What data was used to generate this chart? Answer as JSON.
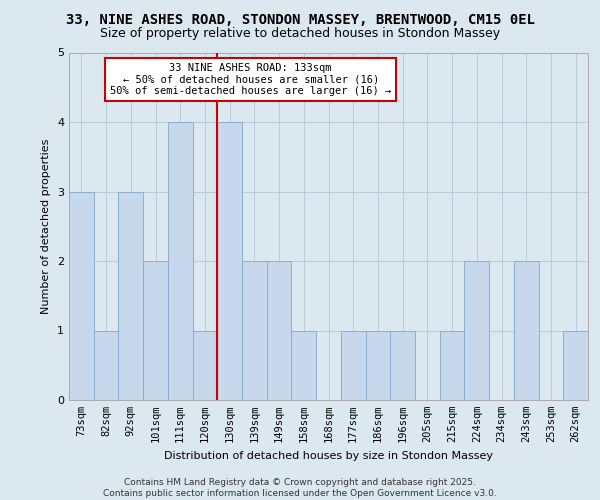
{
  "title1": "33, NINE ASHES ROAD, STONDON MASSEY, BRENTWOOD, CM15 0EL",
  "title2": "Size of property relative to detached houses in Stondon Massey",
  "xlabel": "Distribution of detached houses by size in Stondon Massey",
  "ylabel": "Number of detached properties",
  "categories": [
    "73sqm",
    "82sqm",
    "92sqm",
    "101sqm",
    "111sqm",
    "120sqm",
    "130sqm",
    "139sqm",
    "149sqm",
    "158sqm",
    "168sqm",
    "177sqm",
    "186sqm",
    "196sqm",
    "205sqm",
    "215sqm",
    "224sqm",
    "234sqm",
    "243sqm",
    "253sqm",
    "262sqm"
  ],
  "values": [
    3,
    1,
    3,
    2,
    4,
    1,
    4,
    2,
    2,
    1,
    0,
    1,
    1,
    1,
    0,
    1,
    2,
    0,
    2,
    0,
    1
  ],
  "bar_color": "#c8d8ec",
  "bar_edge_color": "#8bafd0",
  "vline_color": "#cc0000",
  "vline_x_index": 6,
  "annotation_title": "33 NINE ASHES ROAD: 133sqm",
  "annotation_line1": "← 50% of detached houses are smaller (16)",
  "annotation_line2": "50% of semi-detached houses are larger (16) →",
  "annotation_box_facecolor": "white",
  "annotation_box_edgecolor": "#cc0000",
  "ylim": [
    0,
    5
  ],
  "yticks": [
    0,
    1,
    2,
    3,
    4,
    5
  ],
  "footnote1": "Contains HM Land Registry data © Crown copyright and database right 2025.",
  "footnote2": "Contains public sector information licensed under the Open Government Licence v3.0.",
  "bg_color": "#dce8f0",
  "plot_bg_color": "#dce8f0",
  "grid_color": "#b8ccd8",
  "title1_fontsize": 10,
  "title2_fontsize": 9,
  "xlabel_fontsize": 8,
  "ylabel_fontsize": 8,
  "tick_fontsize": 7.5,
  "footnote_fontsize": 6.5
}
